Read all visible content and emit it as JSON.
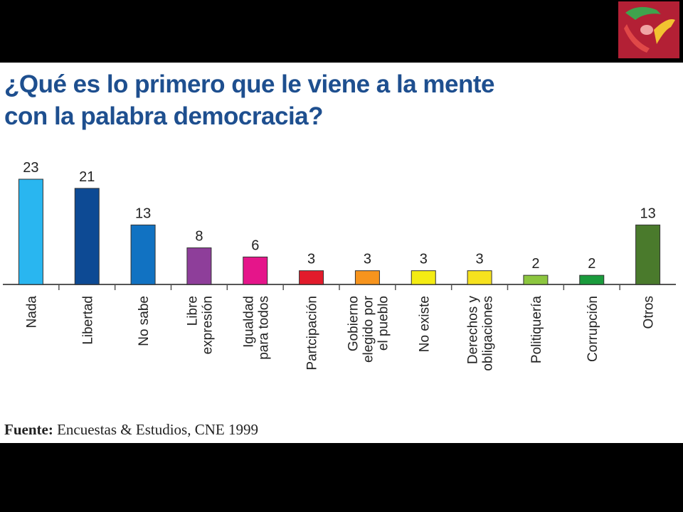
{
  "title_line1": "¿Qué es lo primero que le viene a la mente",
  "title_line2": "con la palabra democracia?",
  "source": {
    "label": "Fuente:",
    "text": "Encuestas & Estudios, CNE 1999"
  },
  "logo": {
    "icon": "interlocking-hands-logo-icon"
  },
  "chart_data": {
    "type": "bar",
    "title": "¿Qué es lo primero que le viene a la mente con la palabra democracia?",
    "xlabel": "",
    "ylabel": "",
    "ylim": [
      0,
      25
    ],
    "grid": false,
    "legend": "none",
    "categories": [
      [
        "Nada"
      ],
      [
        "Libertad"
      ],
      [
        "No sabe"
      ],
      [
        "Libre",
        "expresión"
      ],
      [
        "Igualdad",
        "para todos"
      ],
      [
        "Partcipación"
      ],
      [
        "Gobierno",
        "elegido por",
        "el pueblo"
      ],
      [
        "No existe"
      ],
      [
        "Derechos y",
        "obligaciones"
      ],
      [
        "Politiquería"
      ],
      [
        "Corrupción"
      ],
      [
        "Otros"
      ]
    ],
    "values": [
      23,
      21,
      13,
      8,
      6,
      3,
      3,
      3,
      3,
      2,
      2,
      13
    ],
    "colors": [
      "#29b6f0",
      "#0d4a94",
      "#1172c2",
      "#8e3e9a",
      "#e5158a",
      "#e21b2b",
      "#f7941d",
      "#f4ec13",
      "#f6e21e",
      "#8cc63f",
      "#1a9b3c",
      "#4a7a2c"
    ]
  }
}
